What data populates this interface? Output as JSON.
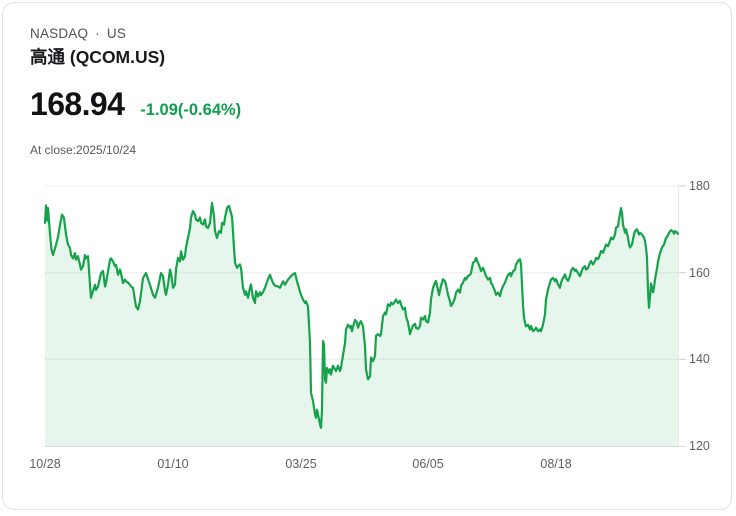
{
  "header": {
    "exchange": "NASDAQ",
    "separator": "·",
    "region": "US",
    "title": "高通 (QCOM.US)"
  },
  "quote": {
    "price": "168.94",
    "change": "-1.09(-0.64%)",
    "at_close": "At close:2025/10/24"
  },
  "colors": {
    "green_line": "#16a24b",
    "green_fill": "rgba(22,162,75,0.10)",
    "green_text": "#0ea04f",
    "title_text": "#17191c",
    "muted_text": "#4e5156",
    "tick_text": "#5d6065",
    "card_border": "#dde3ec",
    "grid_line": "#ededee",
    "axis_line": "#d9dbdd"
  },
  "chart_data": {
    "type": "area",
    "series_name": "QCOM.US close price",
    "ylim": [
      120,
      180
    ],
    "y_ticks": [
      180,
      160,
      140,
      120
    ],
    "x_ticks": [
      {
        "label": "10/28",
        "t": 0
      },
      {
        "label": "01/10",
        "t": 0.2022
      },
      {
        "label": "03/25",
        "t": 0.4045
      },
      {
        "label": "06/05",
        "t": 0.6051
      },
      {
        "label": "08/18",
        "t": 0.8073
      }
    ],
    "line_color": "#16a24b",
    "fill_color": "rgba(22,162,75,0.10)",
    "grid": "horizontal",
    "legend": "none",
    "points": [
      [
        0,
        171.5
      ],
      [
        0.0016,
        175.5
      ],
      [
        0.0039,
        172
      ],
      [
        0.0047,
        174.9
      ],
      [
        0.0079,
        169
      ],
      [
        0.0103,
        165.3
      ],
      [
        0.0126,
        164.1
      ],
      [
        0.0174,
        166.4
      ],
      [
        0.0205,
        168.2
      ],
      [
        0.0237,
        171
      ],
      [
        0.0269,
        173.4
      ],
      [
        0.03,
        172.6
      ],
      [
        0.0332,
        168.8
      ],
      [
        0.0363,
        166.5
      ],
      [
        0.0395,
        165.7
      ],
      [
        0.0411,
        164.1
      ],
      [
        0.0442,
        163.3
      ],
      [
        0.0474,
        164.5
      ],
      [
        0.049,
        163
      ],
      [
        0.0521,
        163.8
      ],
      [
        0.0553,
        161.8
      ],
      [
        0.0569,
        160.7
      ],
      [
        0.06,
        161.5
      ],
      [
        0.0632,
        164.1
      ],
      [
        0.0648,
        163.3
      ],
      [
        0.0679,
        163.8
      ],
      [
        0.0711,
        157.2
      ],
      [
        0.0727,
        154.2
      ],
      [
        0.0758,
        155.8
      ],
      [
        0.079,
        157.2
      ],
      [
        0.0806,
        156
      ],
      [
        0.0837,
        156.8
      ],
      [
        0.0885,
        159.9
      ],
      [
        0.0916,
        160.4
      ],
      [
        0.0948,
        156.8
      ],
      [
        0.0964,
        157.6
      ],
      [
        0.1027,
        163
      ],
      [
        0.1043,
        163.3
      ],
      [
        0.1074,
        162.6
      ],
      [
        0.1106,
        161.5
      ],
      [
        0.1122,
        161.8
      ],
      [
        0.1153,
        159.5
      ],
      [
        0.1185,
        160.7
      ],
      [
        0.1201,
        159.9
      ],
      [
        0.1232,
        157.6
      ],
      [
        0.1264,
        158.4
      ],
      [
        0.128,
        158
      ],
      [
        0.1311,
        157.7
      ],
      [
        0.1343,
        157.2
      ],
      [
        0.1359,
        156.8
      ],
      [
        0.139,
        156.5
      ],
      [
        0.1438,
        152.2
      ],
      [
        0.1469,
        151.5
      ],
      [
        0.1501,
        153.4
      ],
      [
        0.1548,
        158.8
      ],
      [
        0.1596,
        159.9
      ],
      [
        0.1659,
        157.2
      ],
      [
        0.1706,
        154.9
      ],
      [
        0.1738,
        154.2
      ],
      [
        0.1785,
        156.5
      ],
      [
        0.1833,
        159.9
      ],
      [
        0.1864,
        159.2
      ],
      [
        0.1896,
        155.8
      ],
      [
        0.1912,
        154.9
      ],
      [
        0.1943,
        157.2
      ],
      [
        0.1975,
        160.7
      ],
      [
        0.1991,
        159.9
      ],
      [
        0.2022,
        156.5
      ],
      [
        0.2054,
        157.3
      ],
      [
        0.207,
        160.8
      ],
      [
        0.2101,
        163.4
      ],
      [
        0.2133,
        162.6
      ],
      [
        0.2149,
        164.9
      ],
      [
        0.218,
        163
      ],
      [
        0.2212,
        163.8
      ],
      [
        0.2228,
        165.8
      ],
      [
        0.2291,
        170.3
      ],
      [
        0.2307,
        172.7
      ],
      [
        0.2338,
        174.2
      ],
      [
        0.237,
        173.4
      ],
      [
        0.2386,
        172.3
      ],
      [
        0.2417,
        171.9
      ],
      [
        0.2449,
        172.7
      ],
      [
        0.2465,
        171.5
      ],
      [
        0.2496,
        171.1
      ],
      [
        0.2528,
        172.3
      ],
      [
        0.2544,
        170.7
      ],
      [
        0.2575,
        170.3
      ],
      [
        0.2607,
        171.5
      ],
      [
        0.2639,
        176.1
      ],
      [
        0.267,
        173.1
      ],
      [
        0.2686,
        169.6
      ],
      [
        0.2718,
        168
      ],
      [
        0.2749,
        169.6
      ],
      [
        0.2781,
        169.2
      ],
      [
        0.2797,
        171.5
      ],
      [
        0.2828,
        171.1
      ],
      [
        0.2844,
        172.7
      ],
      [
        0.2876,
        175
      ],
      [
        0.2907,
        175.4
      ],
      [
        0.2939,
        173.8
      ],
      [
        0.2955,
        172.7
      ],
      [
        0.2986,
        165.7
      ],
      [
        0.3002,
        162.3
      ],
      [
        0.3033,
        161.1
      ],
      [
        0.3049,
        161.5
      ],
      [
        0.3081,
        161.9
      ],
      [
        0.3097,
        161.1
      ],
      [
        0.3128,
        156.5
      ],
      [
        0.316,
        154.9
      ],
      [
        0.3175,
        155.7
      ],
      [
        0.3207,
        154.2
      ],
      [
        0.3239,
        156.5
      ],
      [
        0.3254,
        157.3
      ],
      [
        0.3286,
        154.2
      ],
      [
        0.3318,
        153
      ],
      [
        0.3333,
        155.7
      ],
      [
        0.3365,
        154.5
      ],
      [
        0.3397,
        155.5
      ],
      [
        0.3412,
        154.8
      ],
      [
        0.3444,
        155.5
      ],
      [
        0.3476,
        156.5
      ],
      [
        0.3523,
        158.5
      ],
      [
        0.3555,
        159.5
      ],
      [
        0.3602,
        157.6
      ],
      [
        0.3634,
        157
      ],
      [
        0.3681,
        156.8
      ],
      [
        0.3713,
        156.5
      ],
      [
        0.376,
        158
      ],
      [
        0.3791,
        157.2
      ],
      [
        0.3839,
        158.4
      ],
      [
        0.3886,
        159.2
      ],
      [
        0.3918,
        159.6
      ],
      [
        0.3949,
        159.9
      ],
      [
        0.3981,
        158
      ],
      [
        0.3997,
        157.2
      ],
      [
        0.4045,
        154.9
      ],
      [
        0.4076,
        153.8
      ],
      [
        0.4107,
        153
      ],
      [
        0.4123,
        153.4
      ],
      [
        0.4155,
        152.2
      ],
      [
        0.4186,
        143.8
      ],
      [
        0.4202,
        132.3
      ],
      [
        0.4234,
        130.4
      ],
      [
        0.4265,
        127.3
      ],
      [
        0.4281,
        126.5
      ],
      [
        0.4297,
        128.4
      ],
      [
        0.4313,
        127.3
      ],
      [
        0.4344,
        125
      ],
      [
        0.436,
        124.2
      ],
      [
        0.4376,
        128.4
      ],
      [
        0.4392,
        144.2
      ],
      [
        0.4408,
        143.4
      ],
      [
        0.4423,
        135.3
      ],
      [
        0.4439,
        134.6
      ],
      [
        0.4455,
        138
      ],
      [
        0.4487,
        136.9
      ],
      [
        0.4502,
        137.7
      ],
      [
        0.4518,
        136.5
      ],
      [
        0.455,
        138.5
      ],
      [
        0.4581,
        137.7
      ],
      [
        0.4597,
        137.3
      ],
      [
        0.4629,
        138.5
      ],
      [
        0.466,
        137.3
      ],
      [
        0.4676,
        138.1
      ],
      [
        0.4739,
        143.8
      ],
      [
        0.4755,
        146.9
      ],
      [
        0.4787,
        148
      ],
      [
        0.4818,
        147.3
      ],
      [
        0.4834,
        147.7
      ],
      [
        0.485,
        146.5
      ],
      [
        0.4866,
        147.5
      ],
      [
        0.4897,
        149.1
      ],
      [
        0.4929,
        148.5
      ],
      [
        0.4945,
        147.3
      ],
      [
        0.4976,
        148.5
      ],
      [
        0.4992,
        148.8
      ],
      [
        0.5024,
        147.6
      ],
      [
        0.5055,
        143
      ],
      [
        0.5071,
        137.7
      ],
      [
        0.5103,
        135.4
      ],
      [
        0.5134,
        136.1
      ],
      [
        0.515,
        140.4
      ],
      [
        0.5182,
        139.6
      ],
      [
        0.5213,
        140.8
      ],
      [
        0.5229,
        145.4
      ],
      [
        0.5261,
        145.8
      ],
      [
        0.5292,
        145.4
      ],
      [
        0.5308,
        145.8
      ],
      [
        0.534,
        149.9
      ],
      [
        0.5371,
        150.8
      ],
      [
        0.5387,
        150.4
      ],
      [
        0.5419,
        152.7
      ],
      [
        0.545,
        152.3
      ],
      [
        0.5466,
        153.1
      ],
      [
        0.5498,
        152.7
      ],
      [
        0.5529,
        153.4
      ],
      [
        0.5545,
        153.8
      ],
      [
        0.5577,
        153
      ],
      [
        0.5608,
        153.5
      ],
      [
        0.5624,
        152.7
      ],
      [
        0.5656,
        151.5
      ],
      [
        0.5687,
        151.9
      ],
      [
        0.5703,
        149.9
      ],
      [
        0.5735,
        148.5
      ],
      [
        0.5766,
        145.8
      ],
      [
        0.5782,
        146.6
      ],
      [
        0.5814,
        147.8
      ],
      [
        0.5845,
        148.2
      ],
      [
        0.5861,
        147.3
      ],
      [
        0.5893,
        147
      ],
      [
        0.5924,
        147.7
      ],
      [
        0.594,
        149.6
      ],
      [
        0.5972,
        149.2
      ],
      [
        0.6003,
        150
      ],
      [
        0.6019,
        148.8
      ],
      [
        0.6051,
        148.5
      ],
      [
        0.6082,
        150.8
      ],
      [
        0.6098,
        153.8
      ],
      [
        0.6129,
        156.5
      ],
      [
        0.6161,
        157.7
      ],
      [
        0.6177,
        158.1
      ],
      [
        0.6208,
        156
      ],
      [
        0.6224,
        154.8
      ],
      [
        0.6256,
        157
      ],
      [
        0.6288,
        158.5
      ],
      [
        0.6319,
        158
      ],
      [
        0.6335,
        157.2
      ],
      [
        0.6367,
        154.9
      ],
      [
        0.6398,
        153.4
      ],
      [
        0.6414,
        152.3
      ],
      [
        0.6445,
        153
      ],
      [
        0.6477,
        154.2
      ],
      [
        0.6493,
        155.4
      ],
      [
        0.6525,
        156.1
      ],
      [
        0.6556,
        155.4
      ],
      [
        0.6572,
        156.9
      ],
      [
        0.6603,
        157.7
      ],
      [
        0.6635,
        158.8
      ],
      [
        0.6651,
        158.4
      ],
      [
        0.6682,
        159.2
      ],
      [
        0.6714,
        159.5
      ],
      [
        0.673,
        159.9
      ],
      [
        0.6761,
        162.3
      ],
      [
        0.6793,
        162.7
      ],
      [
        0.6809,
        163.4
      ],
      [
        0.684,
        162.3
      ],
      [
        0.6872,
        161.1
      ],
      [
        0.6888,
        160.4
      ],
      [
        0.6919,
        161.1
      ],
      [
        0.6951,
        159.9
      ],
      [
        0.6967,
        159.2
      ],
      [
        0.6998,
        158.4
      ],
      [
        0.703,
        158.8
      ],
      [
        0.7046,
        157.7
      ],
      [
        0.7077,
        156.9
      ],
      [
        0.7109,
        155.7
      ],
      [
        0.7125,
        154.9
      ],
      [
        0.7156,
        155.4
      ],
      [
        0.7188,
        154.6
      ],
      [
        0.7204,
        155.7
      ],
      [
        0.7235,
        156.9
      ],
      [
        0.7267,
        157.7
      ],
      [
        0.7283,
        158.4
      ],
      [
        0.7314,
        159.5
      ],
      [
        0.7346,
        159.9
      ],
      [
        0.7362,
        159.2
      ],
      [
        0.7393,
        160.3
      ],
      [
        0.7425,
        160.7
      ],
      [
        0.7441,
        161.9
      ],
      [
        0.7472,
        162.7
      ],
      [
        0.7504,
        163.1
      ],
      [
        0.752,
        161.9
      ],
      [
        0.7551,
        152.6
      ],
      [
        0.7567,
        149.6
      ],
      [
        0.7583,
        148.5
      ],
      [
        0.7599,
        147.6
      ],
      [
        0.763,
        148
      ],
      [
        0.7662,
        146.9
      ],
      [
        0.7678,
        147.7
      ],
      [
        0.7709,
        146.5
      ],
      [
        0.7741,
        146.9
      ],
      [
        0.7757,
        147.3
      ],
      [
        0.7788,
        146.5
      ],
      [
        0.782,
        146.9
      ],
      [
        0.7836,
        146.5
      ],
      [
        0.7867,
        148
      ],
      [
        0.7899,
        150.4
      ],
      [
        0.7915,
        153.8
      ],
      [
        0.7946,
        156.1
      ],
      [
        0.7978,
        157.7
      ],
      [
        0.7994,
        158.4
      ],
      [
        0.8025,
        158.8
      ],
      [
        0.8057,
        158
      ],
      [
        0.8073,
        158.5
      ],
      [
        0.8104,
        157.3
      ],
      [
        0.8136,
        156.5
      ],
      [
        0.8152,
        157.7
      ],
      [
        0.8183,
        158.8
      ],
      [
        0.8215,
        159.6
      ],
      [
        0.8231,
        158.8
      ],
      [
        0.8262,
        158.1
      ],
      [
        0.8294,
        159.2
      ],
      [
        0.831,
        160.4
      ],
      [
        0.8341,
        161.1
      ],
      [
        0.8373,
        160.4
      ],
      [
        0.8389,
        160.7
      ],
      [
        0.842,
        159.9
      ],
      [
        0.8452,
        159.2
      ],
      [
        0.8468,
        159.9
      ],
      [
        0.8499,
        161.1
      ],
      [
        0.8531,
        161.5
      ],
      [
        0.8547,
        160.7
      ],
      [
        0.8578,
        161.1
      ],
      [
        0.861,
        162.3
      ],
      [
        0.8626,
        162.7
      ],
      [
        0.8657,
        161.9
      ],
      [
        0.8689,
        162.7
      ],
      [
        0.8705,
        163.4
      ],
      [
        0.8736,
        163.1
      ],
      [
        0.8768,
        164.2
      ],
      [
        0.8784,
        165
      ],
      [
        0.8815,
        164.6
      ],
      [
        0.8847,
        165.8
      ],
      [
        0.8863,
        166.5
      ],
      [
        0.8894,
        166.1
      ],
      [
        0.8926,
        167.3
      ],
      [
        0.8942,
        168.1
      ],
      [
        0.8973,
        167.7
      ],
      [
        0.9005,
        168.8
      ],
      [
        0.9021,
        170.4
      ],
      [
        0.9052,
        170.7
      ],
      [
        0.9068,
        172.3
      ],
      [
        0.91,
        174.9
      ],
      [
        0.9116,
        173.8
      ],
      [
        0.9131,
        171.1
      ],
      [
        0.9163,
        169.2
      ],
      [
        0.9179,
        170
      ],
      [
        0.921,
        168.1
      ],
      [
        0.9226,
        166.5
      ],
      [
        0.9242,
        165.8
      ],
      [
        0.9274,
        166.5
      ],
      [
        0.9305,
        168.8
      ],
      [
        0.9321,
        169.6
      ],
      [
        0.9353,
        170
      ],
      [
        0.9384,
        168.8
      ],
      [
        0.94,
        169.2
      ],
      [
        0.9432,
        168.8
      ],
      [
        0.9463,
        168.1
      ],
      [
        0.9479,
        167.3
      ],
      [
        0.9495,
        165.8
      ],
      [
        0.9511,
        163.5
      ],
      [
        0.9526,
        155.7
      ],
      [
        0.9542,
        151.9
      ],
      [
        0.9558,
        154.5
      ],
      [
        0.9574,
        157.5
      ],
      [
        0.959,
        156.5
      ],
      [
        0.9605,
        155.5
      ],
      [
        0.9621,
        156.5
      ],
      [
        0.9637,
        158.5
      ],
      [
        0.9668,
        161
      ],
      [
        0.9684,
        162.5
      ],
      [
        0.9716,
        164.5
      ],
      [
        0.9747,
        165.8
      ],
      [
        0.9779,
        166.5
      ],
      [
        0.9811,
        168
      ],
      [
        0.9842,
        168.6
      ],
      [
        0.9858,
        169.2
      ],
      [
        0.989,
        169.8
      ],
      [
        0.9921,
        169.5
      ],
      [
        0.9937,
        169
      ],
      [
        0.9953,
        169.6
      ],
      [
        0.9984,
        169.3
      ],
      [
        1,
        168.94
      ]
    ]
  }
}
